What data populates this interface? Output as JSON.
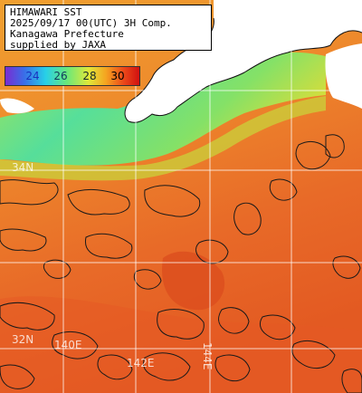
{
  "caption": {
    "line1": "HIMAWARI SST",
    "line2": "2025/09/17 00(UTC) 3H Comp.",
    "line3": "Kanagawa Prefecture",
    "line4": "supplied by JAXA"
  },
  "legend": {
    "ticks": [
      {
        "value": "24",
        "color": "#1a2fbf"
      },
      {
        "value": "26",
        "color": "#133b5c"
      },
      {
        "value": "28",
        "color": "#1a2a2a"
      },
      {
        "value": "30",
        "color": "#000000"
      }
    ],
    "gradient_stops": [
      "#7a2cd2",
      "#3a6ee8",
      "#27d0e8",
      "#6ae87a",
      "#e0e83a",
      "#f5a420",
      "#ec4a1a",
      "#d11010"
    ]
  },
  "grid": {
    "lat_labels": [
      "34N",
      "32N"
    ],
    "lon_labels": [
      "140E",
      "142E",
      "144E"
    ]
  },
  "colors": {
    "land": "#ffffff",
    "coast_cool": "#5fe38a",
    "coast_mid": "#c5e43c",
    "sea_warm": "#ec7a2c",
    "sea_hot": "#d94a1c",
    "cloud_outline": "#1a1a1a"
  }
}
